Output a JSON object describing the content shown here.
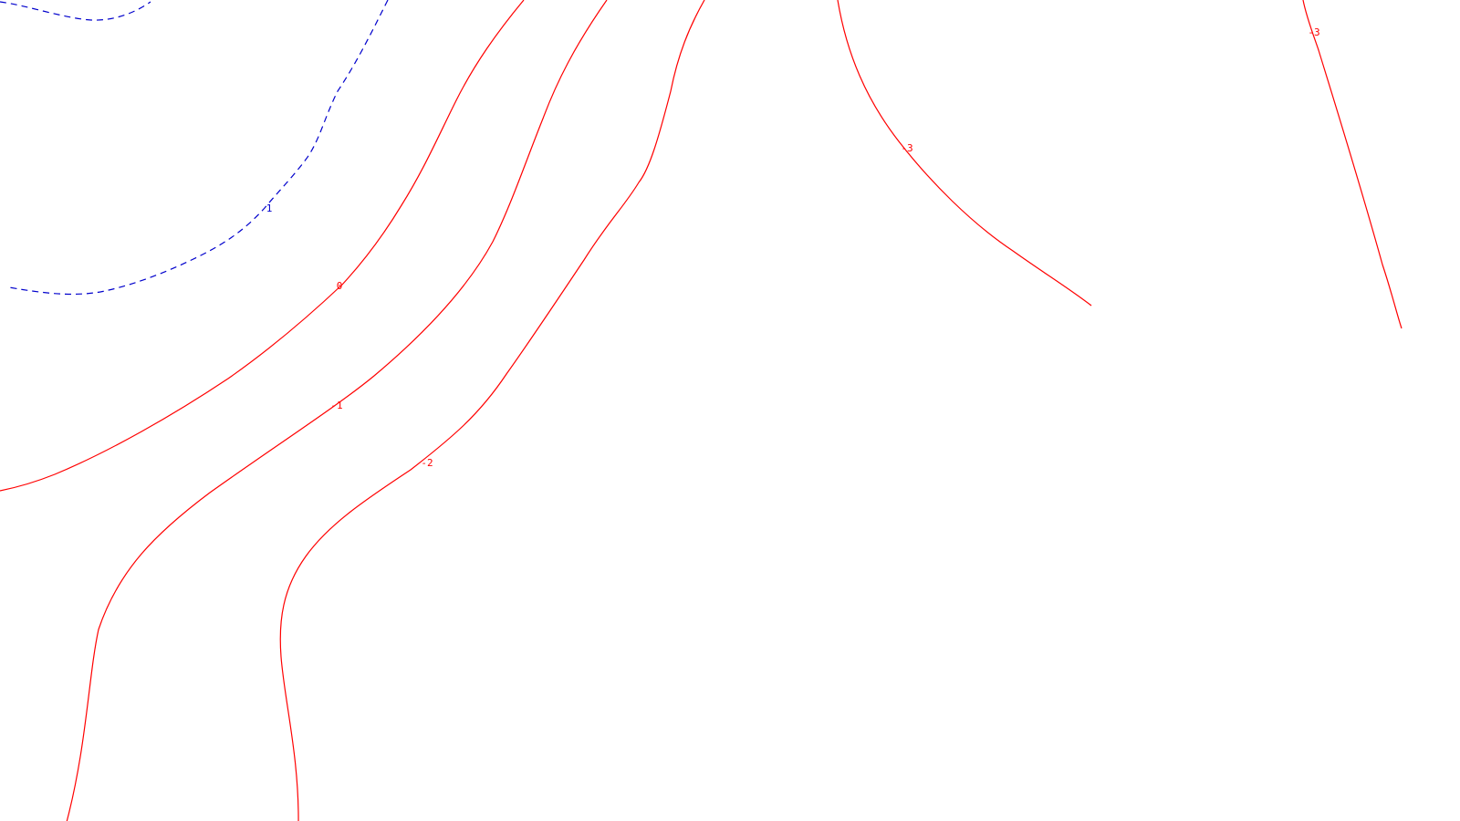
{
  "map": {
    "colors": {
      "background": "#ffffff",
      "negative_and_zero": "#ff0000",
      "positive": "#0000cc"
    },
    "contours": [
      {
        "id": "c-pos1-upper",
        "level": 1,
        "style": "dashed",
        "color": "#0000cc",
        "label": ""
      },
      {
        "id": "c-pos1-main",
        "level": 1,
        "style": "dashed",
        "color": "#0000cc",
        "label": "1"
      },
      {
        "id": "c-zero",
        "level": 0,
        "style": "solid",
        "color": "#ff0000",
        "label": "0"
      },
      {
        "id": "c-neg1",
        "level": -1,
        "style": "solid",
        "color": "#ff0000",
        "label": "-1"
      },
      {
        "id": "c-neg2",
        "level": -2,
        "style": "solid",
        "color": "#ff0000",
        "label": "-2"
      },
      {
        "id": "c-neg3-left",
        "level": -3,
        "style": "solid",
        "color": "#ff0000",
        "label": "-3"
      },
      {
        "id": "c-neg3-right",
        "level": -3,
        "style": "solid",
        "color": "#ff0000",
        "label": "-3"
      }
    ]
  }
}
